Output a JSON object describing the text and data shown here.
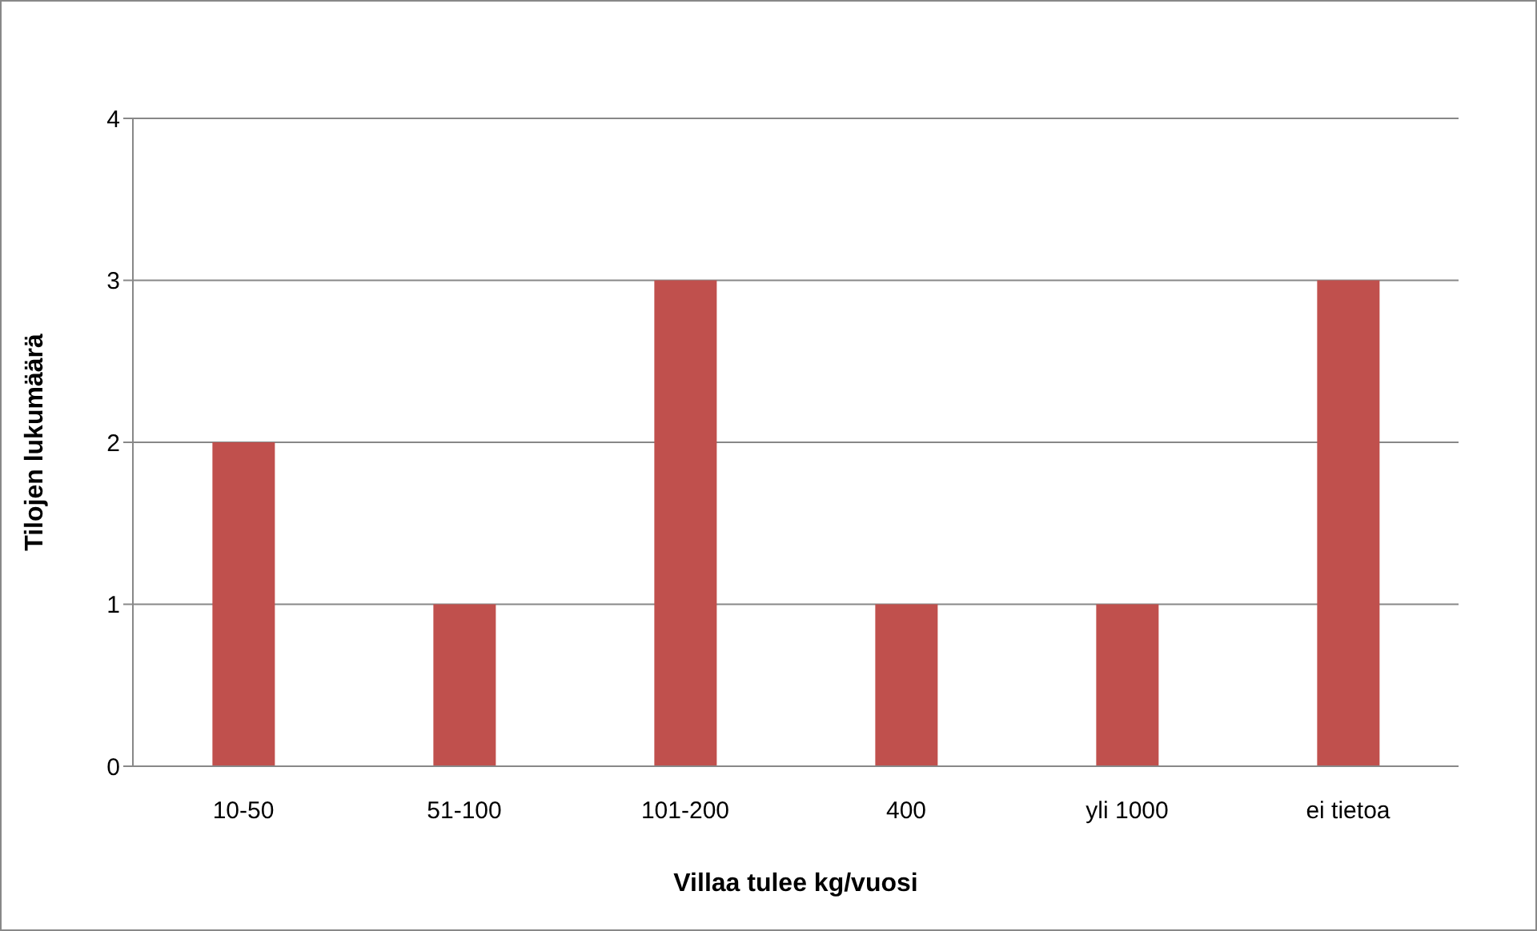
{
  "chart_data": {
    "type": "bar",
    "xlabel": "Villaa tulee kg/vuosi",
    "ylabel": "Tilojen lukumäärä",
    "categories": [
      "10-50",
      "51-100",
      "101-200",
      "400",
      "yli 1000",
      "ei tietoa"
    ],
    "values": [
      2,
      1,
      3,
      1,
      1,
      3
    ],
    "color": "#c0504d",
    "ylim": [
      0,
      4
    ],
    "yticks": [
      0,
      1,
      2,
      3,
      4
    ],
    "grid": "y"
  }
}
